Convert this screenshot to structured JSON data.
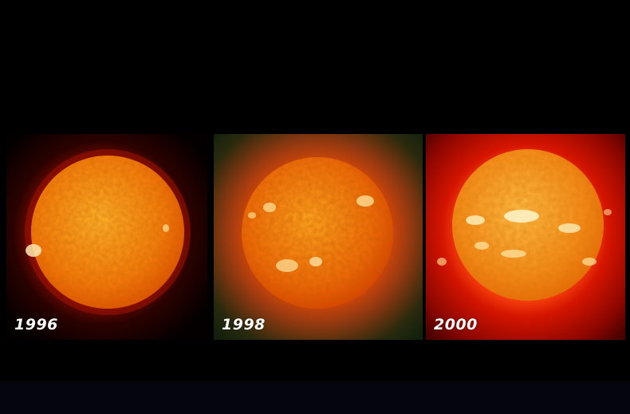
{
  "panels": [
    {
      "year": "1996"
    },
    {
      "year": "1998"
    },
    {
      "year": "2000"
    }
  ],
  "colors": {
    "background": "#000000",
    "sun_core": "#ffb020",
    "sun_limb": "#e85a00",
    "corona": "#c80f00",
    "active_region": "#fff2a8"
  }
}
